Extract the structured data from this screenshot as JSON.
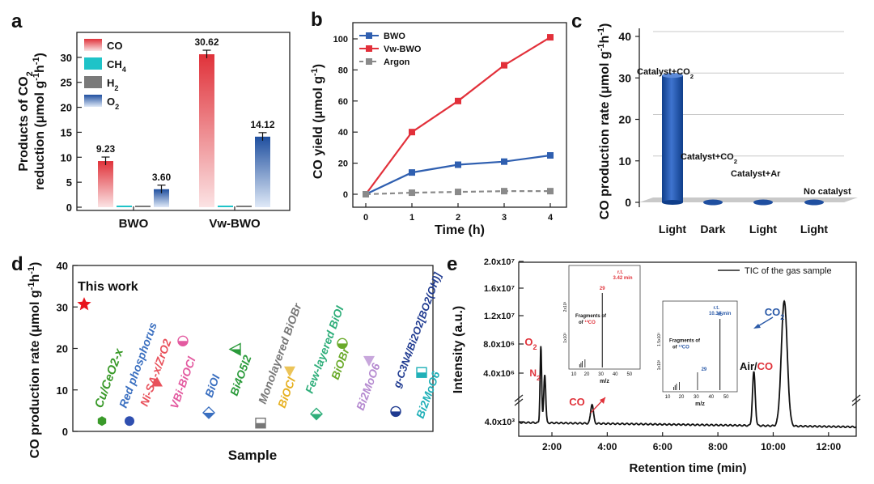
{
  "chart_data": [
    {
      "panel": "a",
      "type": "bar",
      "ylabel_line1": "Products of CO",
      "ylabel_sub1": "2",
      "ylabel_line2": "reduction (μmol g",
      "ylabel_sup1": "-1",
      "ylabel_mid": "h",
      "ylabel_sup2": "-1",
      "ylabel_end": ")",
      "ylim": [
        0,
        35
      ],
      "yticks": [
        "0",
        "5",
        "10",
        "15",
        "20",
        "25",
        "30"
      ],
      "categories": [
        "BWO",
        "Vw-BWO"
      ],
      "series": [
        {
          "name": "CO",
          "values": [
            9.23,
            30.62
          ],
          "color": "#e0323a"
        },
        {
          "name": "CH4",
          "label_main": "CH",
          "label_sub": "4",
          "values": [
            0,
            0
          ],
          "color": "#1fc3c8"
        },
        {
          "name": "H2",
          "label_main": "H",
          "label_sub": "2",
          "values": [
            0,
            0
          ],
          "color": "#7a7a7a"
        },
        {
          "name": "O2",
          "label_main": "O",
          "label_sub": "2",
          "values": [
            3.6,
            14.12
          ],
          "color": "#2b5aa8"
        }
      ],
      "data_labels": [
        "9.23",
        "3.60",
        "30.62",
        "14.12"
      ]
    },
    {
      "panel": "b",
      "type": "line",
      "xlabel": "Time (h)",
      "ylabel": "CO yield (μmol g",
      "ylabel_sup": "-1",
      "ylabel_end": ")",
      "x": [
        0,
        1,
        2,
        3,
        4
      ],
      "xticks": [
        "0",
        "1",
        "2",
        "3",
        "4"
      ],
      "ylim": [
        -5,
        110
      ],
      "yticks": [
        "0",
        "20",
        "40",
        "60",
        "80",
        "100"
      ],
      "series": [
        {
          "name": "BWO",
          "values": [
            0,
            14,
            19,
            21,
            25
          ],
          "color": "#2f5fb0"
        },
        {
          "name": "Vw-BWO",
          "values": [
            0,
            40,
            60,
            83,
            101
          ],
          "color": "#e2303a"
        },
        {
          "name": "Argon",
          "values": [
            0,
            1,
            1.5,
            2,
            2
          ],
          "color": "#8a8a8a"
        }
      ]
    },
    {
      "panel": "c",
      "type": "bar",
      "ylabel": "CO production rate (μmol g",
      "ylabel_sup1": "-1",
      "ylabel_mid": "h",
      "ylabel_sup2": "-1",
      "ylabel_end": ")",
      "ylim": [
        0,
        40
      ],
      "yticks": [
        "0",
        "10",
        "20",
        "30",
        "40"
      ],
      "categories": [
        "Light",
        "Dark",
        "Light",
        "Light"
      ],
      "values": [
        30.6,
        0,
        0,
        0
      ],
      "bar_labels": [
        {
          "main": "Catalyst+CO",
          "sub": "2"
        },
        {
          "main": "Catalyst+CO",
          "sub": "2"
        },
        {
          "main": "Catalyst+Ar",
          "sub": ""
        },
        {
          "main": "No catalyst",
          "sub": ""
        }
      ],
      "color": "#1f4fa0"
    },
    {
      "panel": "d",
      "type": "scatter",
      "xlabel": "Sample",
      "ylabel": "CO production rate (μmol g",
      "ylabel_sup1": "-1",
      "ylabel_mid": "h",
      "ylabel_sup2": "-1",
      "ylabel_end": ")",
      "ylim": [
        0,
        40
      ],
      "yticks": [
        "0",
        "10",
        "20",
        "30",
        "40"
      ],
      "this_work_label": "This work",
      "points": [
        {
          "label": "This work",
          "value": 30.62,
          "color": "#e8141c"
        },
        {
          "label": "Cu/CeO2-x",
          "value": 2.5,
          "color": "#3a9a2a"
        },
        {
          "label": "Red phosphorus",
          "value": 2.5,
          "color": "#2f4fb0"
        },
        {
          "label": "Ni-SA-x/ZrO2",
          "value": 11.8,
          "color": "#e8505a"
        },
        {
          "label": "VBi-BiOCl",
          "value": 21.8,
          "color": "#e35aa0"
        },
        {
          "label": "BiOI",
          "value": 4.5,
          "color": "#3a6fc0"
        },
        {
          "label": "Bi4O5I2",
          "value": 19.8,
          "color": "#2a9a3a"
        },
        {
          "label": "Monolayered BiOBr",
          "value": 2.0,
          "color": "#777777"
        },
        {
          "label": "BiOCl",
          "value": 14.5,
          "color": "#e6b020"
        },
        {
          "label": "Few-layered BiOI",
          "value": 4.2,
          "color": "#2fae7a"
        },
        {
          "label": "BiOBr",
          "value": 21.2,
          "color": "#6aaa2a"
        },
        {
          "label": "Bi2MoO6",
          "value": 17.0,
          "color": "#b58ad0"
        },
        {
          "label": "g-C3N4/Bi2O2[BO2(OH)]",
          "value": 4.8,
          "color": "#1f3a90"
        },
        {
          "label": "Bi2MoO6",
          "value": 14.2,
          "color": "#20b0b8"
        }
      ],
      "point_labels": [
        "Cu/CeO2-x",
        "Red phosphorus",
        "Ni-SA-x/ZrO2",
        "VBi-BiOCl",
        "BiOI",
        "Bi4O5I2",
        "Monolayered BiOBr",
        "BiOCl",
        "Few-layered BiOI",
        "BiOBr",
        "Bi2MoO6",
        "g-C3N4/Bi2O2[BO2(OH)]",
        "Bi2MoO6"
      ]
    },
    {
      "panel": "e",
      "type": "line",
      "xlabel": "Retention time (min)",
      "ylabel": "Intensity (a.u.)",
      "xticks": [
        "2:00",
        "4:00",
        "6:00",
        "8:00",
        "10:00",
        "12:00"
      ],
      "yticks": [
        "4.0x10³",
        "4.0x10⁶",
        "8.0x10⁶",
        "1.2x10⁷",
        "1.6x10⁷",
        "2.0x10⁷"
      ],
      "legend": "TIC of the gas sample",
      "peaks": [
        {
          "label": "O2",
          "main": "O",
          "sub": "2",
          "time_min": 1.6
        },
        {
          "label": "N2",
          "main": "N",
          "sub": "2",
          "time_min": 1.75
        },
        {
          "label": "CO",
          "main": "CO",
          "sub": "",
          "time_min": 3.45
        },
        {
          "label": "Air/CO",
          "main": "Air/",
          "sub": "",
          "time_min": 9.3
        },
        {
          "label": "CO2",
          "main": "CO",
          "sub": "2",
          "time_min": 10.4
        }
      ],
      "inset1": {
        "rt": "3.42 min",
        "peak": "29",
        "fragments": "Fragments of",
        "species": "CO",
        "iso": "13",
        "xlabel": "m/z",
        "xticks": [
          "10",
          "20",
          "30",
          "40",
          "50"
        ],
        "yticks": [
          "1x10³",
          "2x10³"
        ]
      },
      "inset2": {
        "rt": "10.34 min",
        "peak": "45",
        "peak2": "29",
        "fragments": "Fragments of",
        "species": "CO",
        "iso": "13",
        "xlabel": "m/z",
        "xticks": [
          "10",
          "20",
          "30",
          "40",
          "50"
        ],
        "yticks": [
          "1x10³",
          "1.5x10³"
        ]
      }
    }
  ],
  "panel_labels": [
    "a",
    "b",
    "c",
    "d",
    "e"
  ]
}
